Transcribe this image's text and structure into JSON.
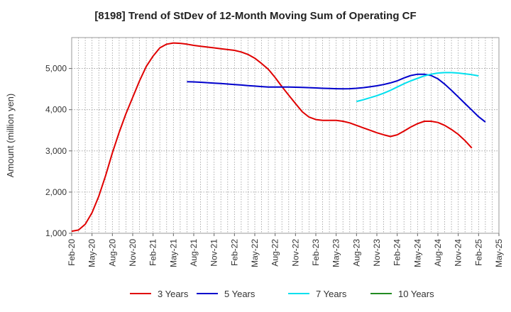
{
  "chart_data": {
    "type": "line",
    "title": "[8198]  Trend of StDev of 12-Month Moving Sum of Operating CF",
    "xlabel": "",
    "ylabel": "Amount (million yen)",
    "ylim": [
      1000,
      5750
    ],
    "yticks": [
      1000,
      2000,
      3000,
      4000,
      5000
    ],
    "ytick_labels": [
      "1,000",
      "2,000",
      "3,000",
      "4,000",
      "5,000"
    ],
    "x_start": "Feb-20",
    "x_end": "May-25",
    "xtick_labels": [
      "Feb-20",
      "May-20",
      "Aug-20",
      "Nov-20",
      "Feb-21",
      "May-21",
      "Aug-21",
      "Nov-21",
      "Feb-22",
      "May-22",
      "Aug-22",
      "Nov-22",
      "Feb-23",
      "May-23",
      "Aug-23",
      "Nov-23",
      "Feb-24",
      "May-24",
      "Aug-24",
      "Nov-24",
      "Feb-25",
      "May-25"
    ],
    "grid": true,
    "legend_position": "bottom",
    "series": [
      {
        "name": "3 Years",
        "color": "#e00000",
        "start": "Feb-20",
        "values": [
          1050,
          1080,
          1220,
          1500,
          1900,
          2400,
          2950,
          3450,
          3900,
          4300,
          4700,
          5050,
          5300,
          5500,
          5590,
          5620,
          5610,
          5590,
          5560,
          5540,
          5520,
          5500,
          5480,
          5460,
          5440,
          5400,
          5340,
          5250,
          5120,
          4980,
          4780,
          4560,
          4350,
          4150,
          3950,
          3820,
          3760,
          3740,
          3740,
          3740,
          3720,
          3680,
          3620,
          3560,
          3500,
          3440,
          3390,
          3350,
          3390,
          3480,
          3580,
          3660,
          3720,
          3720,
          3690,
          3620,
          3520,
          3400,
          3250,
          3070
        ]
      },
      {
        "name": "5 Years",
        "color": "#0000cc",
        "start": "Jul-21",
        "values": [
          4680,
          4675,
          4665,
          4655,
          4645,
          4635,
          4622,
          4610,
          4598,
          4585,
          4572,
          4560,
          4550,
          4548,
          4548,
          4548,
          4545,
          4540,
          4535,
          4528,
          4520,
          4515,
          4510,
          4508,
          4510,
          4520,
          4535,
          4555,
          4580,
          4610,
          4650,
          4700,
          4770,
          4830,
          4860,
          4860,
          4830,
          4750,
          4620,
          4470,
          4310,
          4150,
          3990,
          3830,
          3700
        ]
      },
      {
        "name": "7 Years",
        "color": "#00e0ee",
        "start": "Aug-23",
        "values": [
          4200,
          4240,
          4290,
          4340,
          4400,
          4470,
          4550,
          4630,
          4700,
          4760,
          4820,
          4860,
          4890,
          4900,
          4900,
          4890,
          4870,
          4850,
          4820
        ]
      },
      {
        "name": "10 Years",
        "color": "#228b22",
        "start": "Feb-25",
        "values": []
      }
    ]
  }
}
